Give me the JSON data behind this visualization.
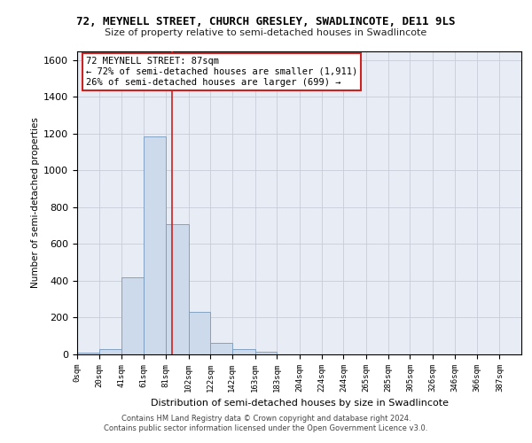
{
  "title_line1": "72, MEYNELL STREET, CHURCH GRESLEY, SWADLINCOTE, DE11 9LS",
  "title_line2": "Size of property relative to semi-detached houses in Swadlincote",
  "xlabel": "Distribution of semi-detached houses by size in Swadlincote",
  "ylabel": "Number of semi-detached properties",
  "footer_line1": "Contains HM Land Registry data © Crown copyright and database right 2024.",
  "footer_line2": "Contains public sector information licensed under the Open Government Licence v3.0.",
  "annotation_title": "72 MEYNELL STREET: 87sqm",
  "annotation_line1": "← 72% of semi-detached houses are smaller (1,911)",
  "annotation_line2": "26% of semi-detached houses are larger (699) →",
  "property_size_sqm": 87,
  "bin_edges": [
    0,
    20,
    41,
    61,
    81,
    102,
    122,
    142,
    163,
    183,
    204,
    224,
    244,
    265,
    285,
    305,
    326,
    346,
    366,
    387,
    407
  ],
  "bin_counts": [
    10,
    30,
    420,
    1185,
    710,
    230,
    65,
    30,
    15,
    0,
    0,
    0,
    0,
    0,
    0,
    0,
    0,
    0,
    0,
    0
  ],
  "bar_color": "#ccdaeb",
  "bar_edge_color": "#7799bb",
  "highlight_line_color": "#cc2222",
  "annotation_box_color": "#ffffff",
  "annotation_box_edge": "#cc2222",
  "grid_color": "#c8ccd8",
  "background_color": "#e8ecf4",
  "ylim": [
    0,
    1650
  ],
  "yticks": [
    0,
    200,
    400,
    600,
    800,
    1000,
    1200,
    1400,
    1600
  ]
}
